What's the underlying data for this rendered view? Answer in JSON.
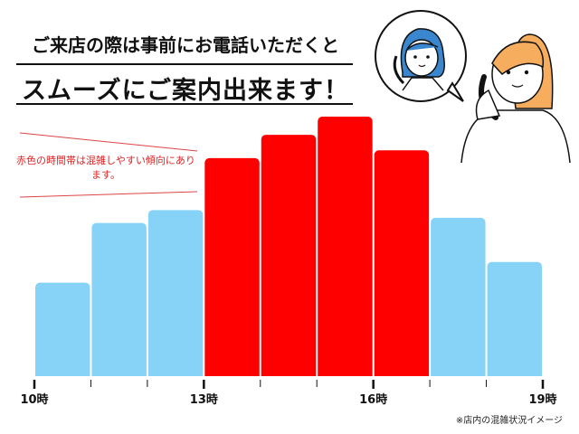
{
  "headline": {
    "line1": "ご来店の際は事前にお電話いただくと",
    "line2": "スムーズにご案内出来ます！"
  },
  "annotation": "赤色の時間帯は混雑しやすい傾向にあります。",
  "footnote": "※店内の混雑状況イメージ",
  "illustration": "woman-on-phone-with-staff-speech-bubble",
  "chart_data": {
    "type": "bar",
    "title": "",
    "xlabel": "",
    "ylabel": "",
    "x_ticks": [
      "10時",
      "13時",
      "16時",
      "19時"
    ],
    "x_range": [
      10,
      19
    ],
    "categories": [
      "10-11",
      "11-12",
      "12-13",
      "13-14",
      "14-15",
      "15-16",
      "16-17",
      "17-18",
      "18-19"
    ],
    "values": [
      36,
      59,
      64,
      84,
      93,
      100,
      87,
      61,
      44
    ],
    "busy": [
      false,
      false,
      false,
      true,
      true,
      true,
      true,
      false,
      false
    ],
    "colors": {
      "busy": "#ff0000",
      "normal": "#87d3f8",
      "note": "#d22222"
    },
    "grid": false,
    "y_axis_shown": false
  }
}
